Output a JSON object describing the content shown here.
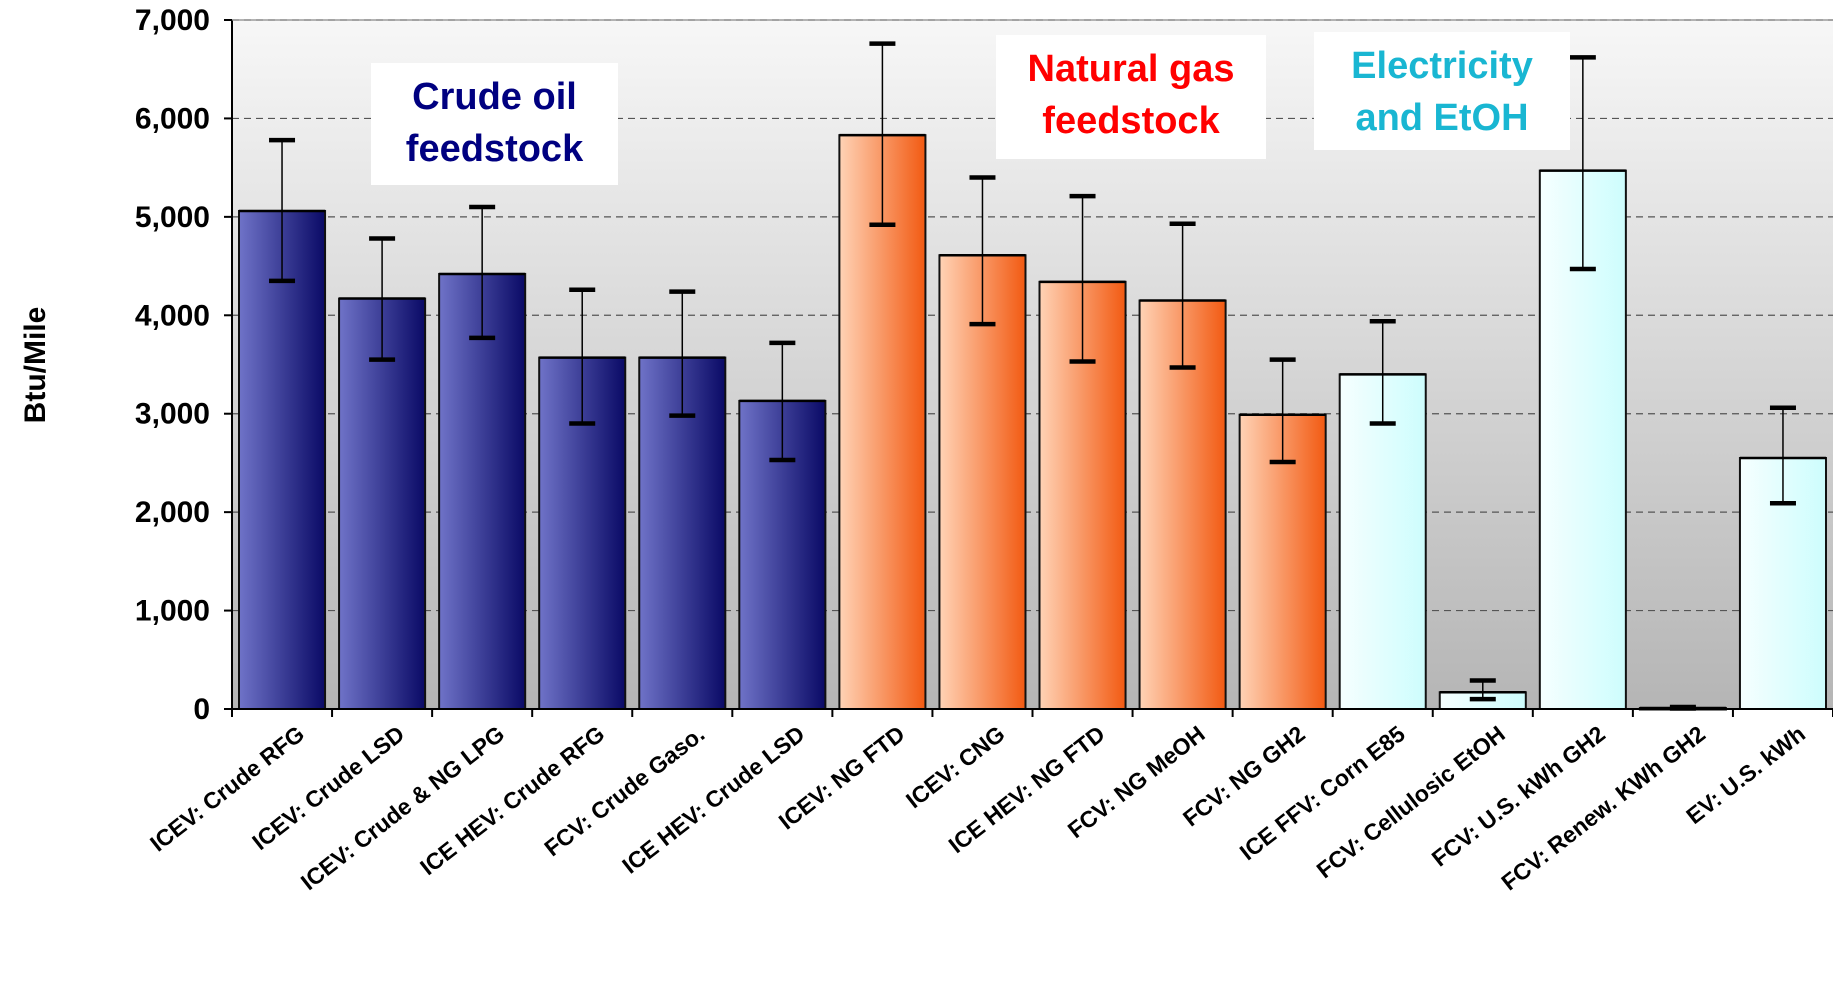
{
  "chart_data": {
    "type": "bar",
    "ylabel": "Btu/Mile",
    "xlabel": "",
    "ylim": [
      0,
      7000
    ],
    "yticks": [
      0,
      1000,
      2000,
      3000,
      4000,
      5000,
      6000,
      7000
    ],
    "ytick_labels": [
      "0",
      "1,000",
      "2,000",
      "3,000",
      "4,000",
      "5,000",
      "6,000",
      "7,000"
    ],
    "grid": "horizontal dashed",
    "categories": [
      "ICEV: Crude RFG",
      "ICEV: Crude LSD",
      "ICEV: Crude & NG LPG",
      "ICE HEV: Crude RFG",
      "FCV: Crude Gaso.",
      "ICE HEV: Crude LSD",
      "ICEV: NG FTD",
      "ICEV: CNG",
      "ICE HEV: NG FTD",
      "FCV: NG MeOH",
      "FCV: NG GH2",
      "ICE FFV: Corn E85",
      "FCV: Cellulosic EtOH",
      "FCV: U.S. kWh GH2",
      "FCV: Renew. KWh GH2",
      "EV: U.S. kWh"
    ],
    "values": [
      5060,
      4170,
      4420,
      3570,
      3570,
      3130,
      5830,
      4610,
      4340,
      4150,
      2990,
      3400,
      170,
      5470,
      10,
      2550
    ],
    "error_low": [
      4350,
      3550,
      3770,
      2900,
      2980,
      2530,
      4920,
      3910,
      3530,
      3470,
      2510,
      2900,
      100,
      4470,
      5,
      2090
    ],
    "error_high": [
      5780,
      4780,
      5100,
      4260,
      4240,
      3720,
      6760,
      5400,
      5210,
      4930,
      3550,
      3940,
      290,
      6620,
      20,
      3060
    ],
    "groups": [
      {
        "label_lines": [
          "Crude oil",
          "feedstock"
        ],
        "color": "#000080",
        "fill_light": "#6f73c8",
        "fill_dark": "#0a0a66",
        "start": 0,
        "end": 5
      },
      {
        "label_lines": [
          "Natural gas",
          "feedstock"
        ],
        "color": "#ff0000",
        "fill_light": "#ffd3b6",
        "fill_dark": "#f25a12",
        "start": 6,
        "end": 10
      },
      {
        "label_lines": [
          "Electricity",
          "and EtOH"
        ],
        "color": "#19b6d2",
        "fill_light": "#f6ffff",
        "fill_dark": "#cdfdfd",
        "start": 11,
        "end": 15
      }
    ]
  }
}
